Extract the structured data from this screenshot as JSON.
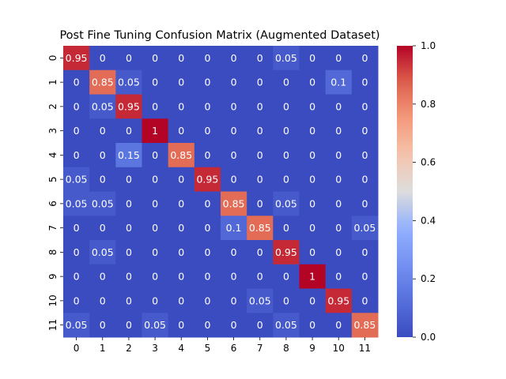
{
  "chart_data": {
    "type": "heatmap",
    "title": "Post Fine Tuning Confusion Matrix (Augmented Dataset)",
    "xlabel": "",
    "ylabel": "",
    "x_categories": [
      "0",
      "1",
      "2",
      "3",
      "4",
      "5",
      "6",
      "7",
      "8",
      "9",
      "10",
      "11"
    ],
    "y_categories": [
      "0",
      "1",
      "2",
      "3",
      "4",
      "5",
      "6",
      "7",
      "8",
      "9",
      "10",
      "11"
    ],
    "values": [
      [
        0.95,
        0,
        0,
        0,
        0,
        0,
        0,
        0,
        0.05,
        0,
        0,
        0
      ],
      [
        0,
        0.85,
        0.05,
        0,
        0,
        0,
        0,
        0,
        0,
        0,
        0.1,
        0
      ],
      [
        0,
        0.05,
        0.95,
        0,
        0,
        0,
        0,
        0,
        0,
        0,
        0,
        0
      ],
      [
        0,
        0,
        0,
        1,
        0,
        0,
        0,
        0,
        0,
        0,
        0,
        0
      ],
      [
        0,
        0,
        0.15,
        0,
        0.85,
        0,
        0,
        0,
        0,
        0,
        0,
        0
      ],
      [
        0.05,
        0,
        0,
        0,
        0,
        0.95,
        0,
        0,
        0,
        0,
        0,
        0
      ],
      [
        0.05,
        0.05,
        0,
        0,
        0,
        0,
        0.85,
        0,
        0.05,
        0,
        0,
        0
      ],
      [
        0,
        0,
        0,
        0,
        0,
        0,
        0.1,
        0.85,
        0,
        0,
        0,
        0.05
      ],
      [
        0,
        0.05,
        0,
        0,
        0,
        0,
        0,
        0,
        0.95,
        0,
        0,
        0
      ],
      [
        0,
        0,
        0,
        0,
        0,
        0,
        0,
        0,
        0,
        1,
        0,
        0
      ],
      [
        0,
        0,
        0,
        0,
        0,
        0,
        0,
        0.05,
        0,
        0,
        0.95,
        0
      ],
      [
        0.05,
        0,
        0,
        0.05,
        0,
        0,
        0,
        0,
        0.05,
        0,
        0,
        0.85
      ]
    ],
    "value_range": [
      0.0,
      1.0
    ],
    "colormap": "coolwarm",
    "colorbar": {
      "ticks": [
        0.0,
        0.2,
        0.4,
        0.6,
        0.8,
        1.0
      ],
      "tick_labels": [
        "0.0",
        "0.2",
        "0.4",
        "0.6",
        "0.8",
        "1.0"
      ]
    },
    "annotations": "cell values",
    "grid": false
  }
}
